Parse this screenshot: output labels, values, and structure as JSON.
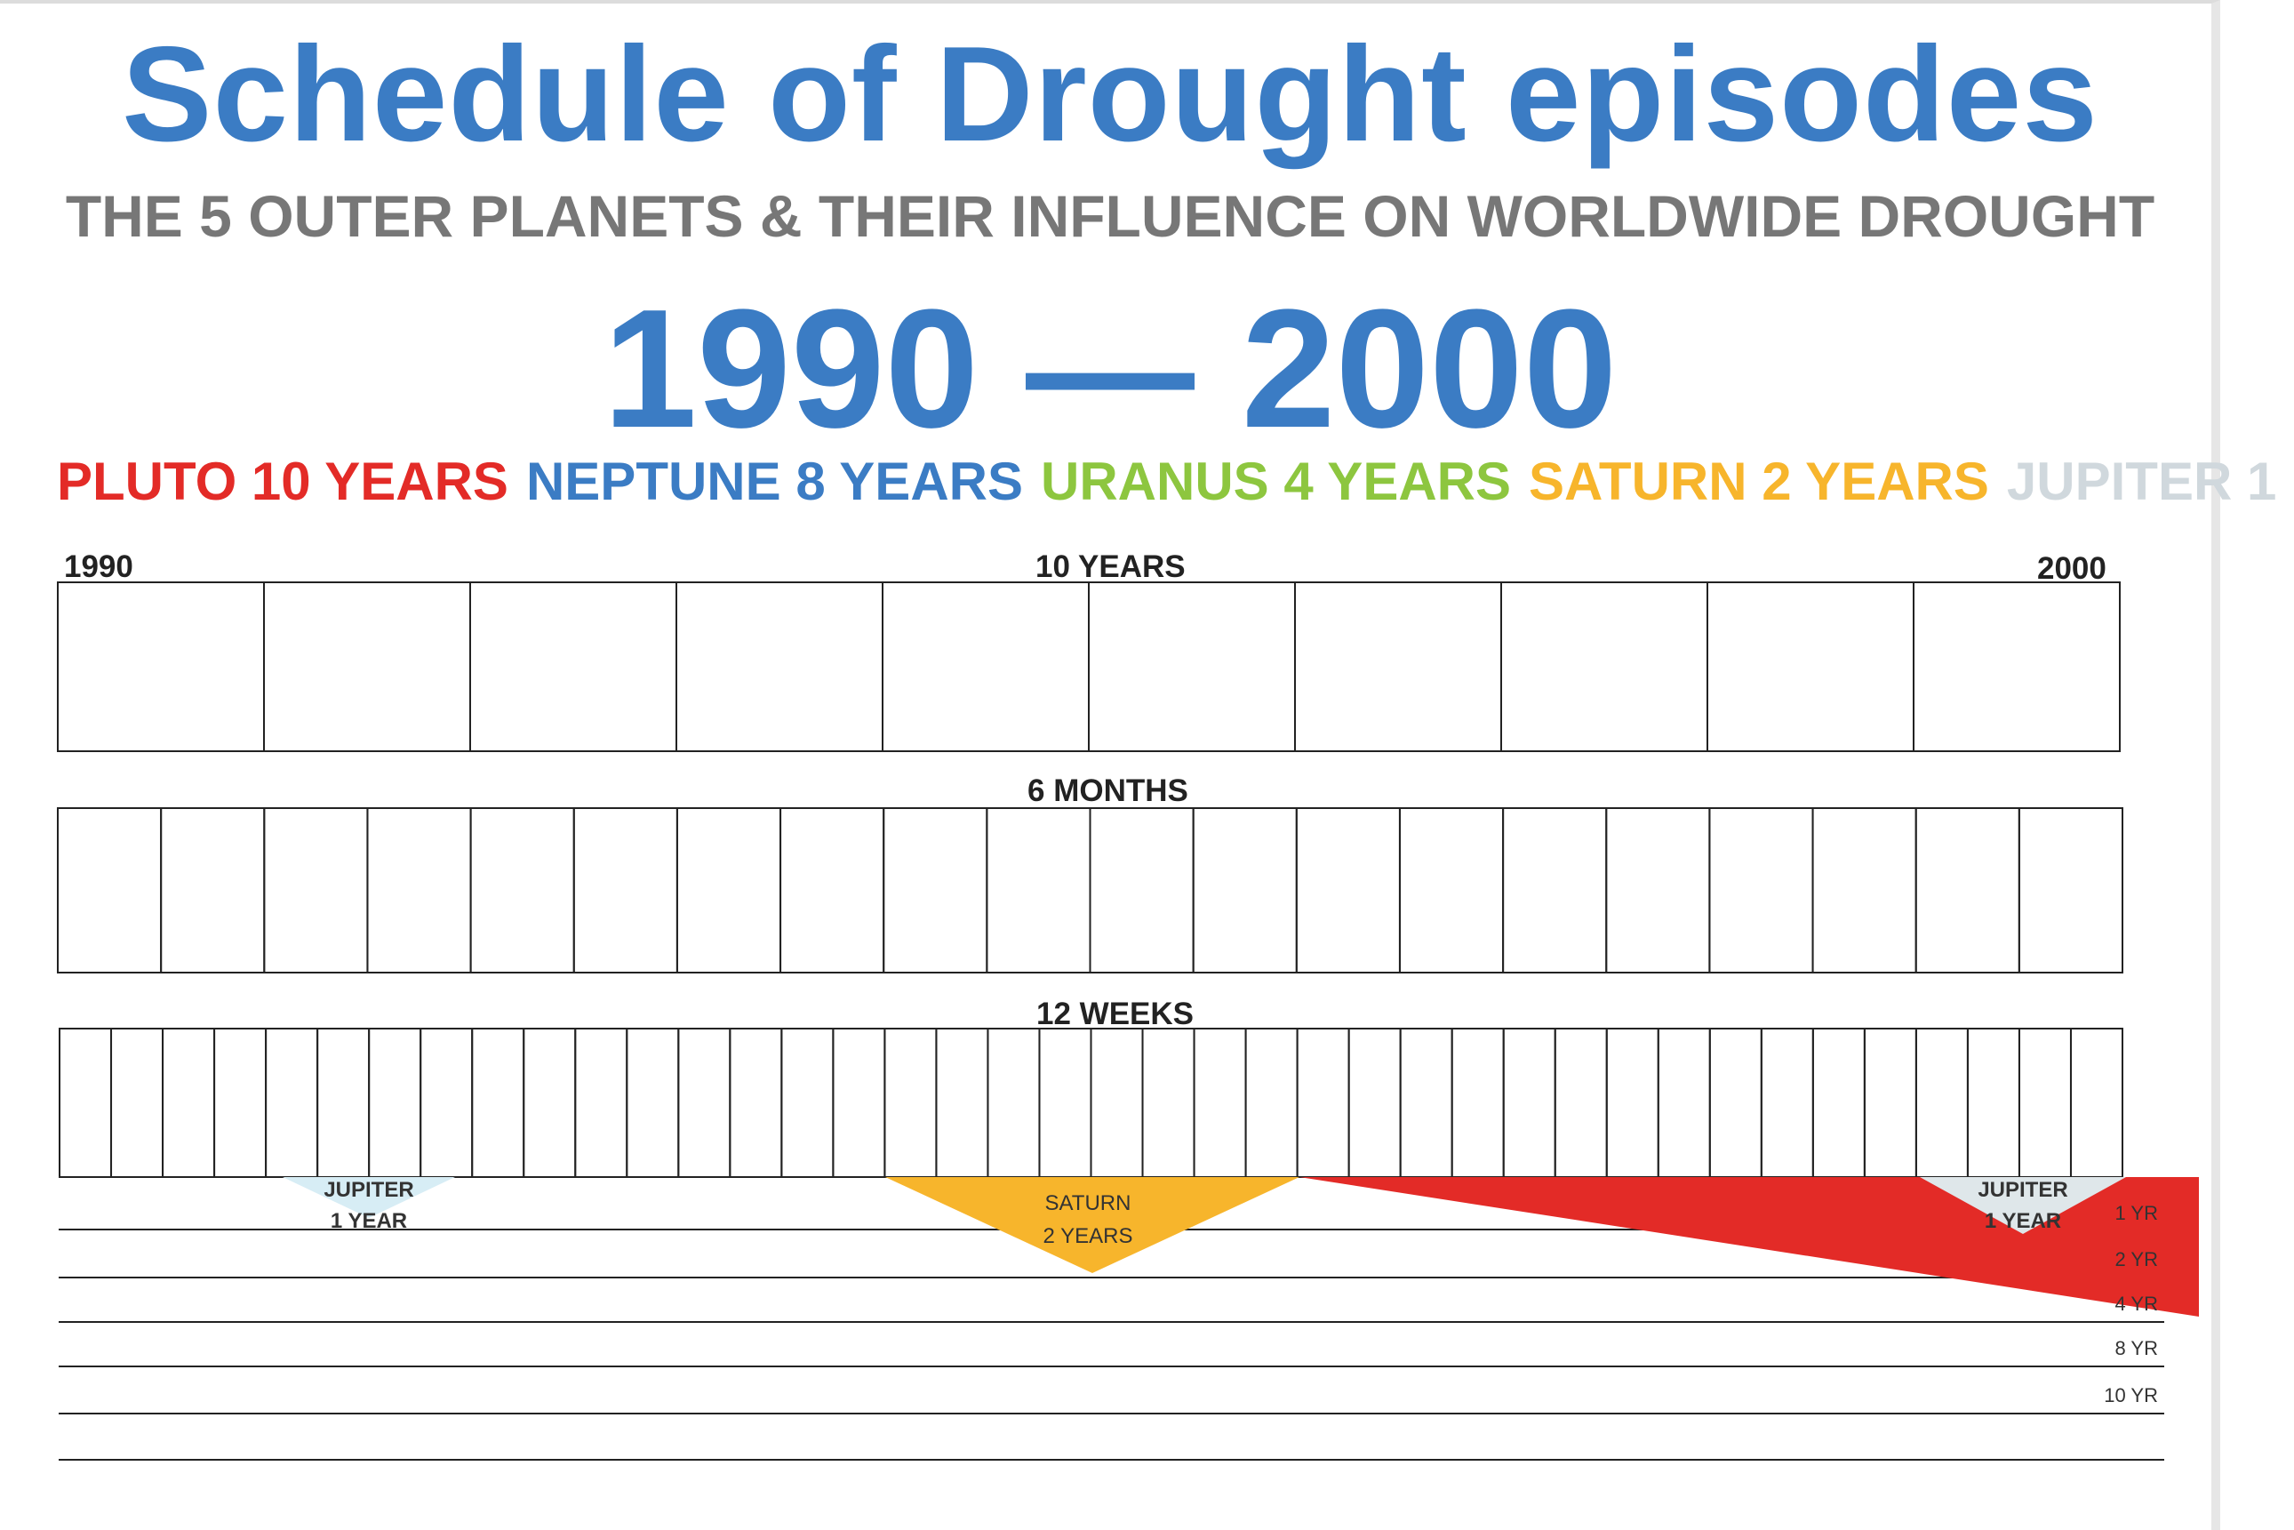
{
  "header": {
    "title": "Schedule of Drought episodes",
    "subtitle": "THE 5 OUTER PLANETS & THEIR INFLUENCE ON WORLDWIDE DROUGHT",
    "range": "1990 — 2000"
  },
  "legend": [
    {
      "label": "PLUTO 10 YEARS",
      "color": "#e32b27"
    },
    {
      "label": "NEPTUNE 8 YEARS",
      "color": "#3b7cc4"
    },
    {
      "label": "URANUS 4 YEARS",
      "color": "#8dc63f"
    },
    {
      "label": "SATURN 2 YEARS",
      "color": "#f7b52c"
    },
    {
      "label": "JUPITER 1",
      "color": "#d0d8dd"
    }
  ],
  "grid": {
    "start_label": "1990",
    "end_label": "2000",
    "rows": [
      {
        "label": "10  YEARS",
        "cells": 10
      },
      {
        "label": "6 MONTHS",
        "cells": 20
      },
      {
        "label": "12 WEEKS",
        "cells": 40
      }
    ]
  },
  "tracks": [
    "1 YR",
    "2 YR",
    "4 YR",
    "8 YR",
    "10 YR"
  ],
  "markers": {
    "jupiter_left": {
      "line1": "JUPITER",
      "line2": "1 YEAR",
      "color": "#d7edf5"
    },
    "saturn": {
      "line1": "SATURN",
      "line2": "2 YEARS",
      "color": "#f7b52c"
    },
    "jupiter_right": {
      "line1": "JUPITER",
      "line2": "1 YEAR",
      "color": "#dfe7ea"
    },
    "pluto_color": "#e32b27"
  }
}
